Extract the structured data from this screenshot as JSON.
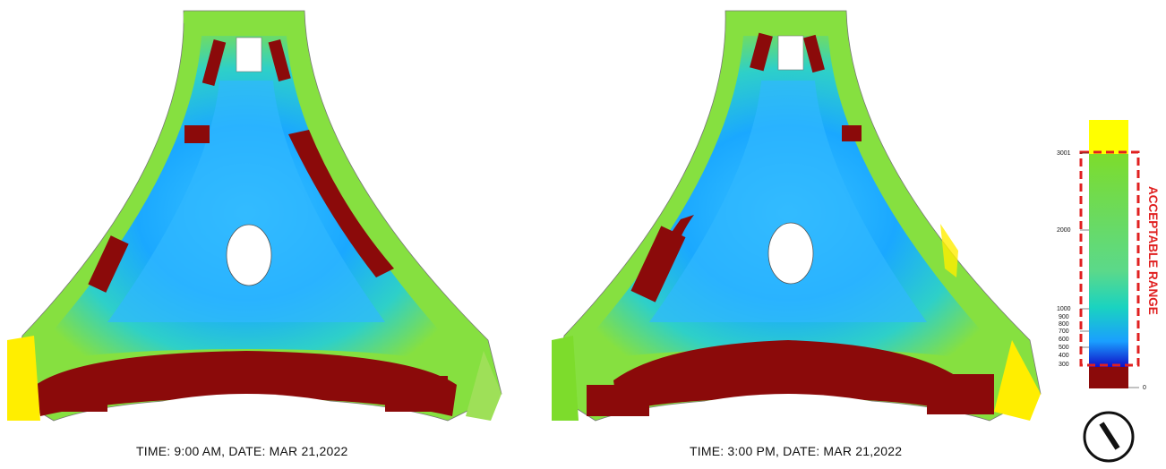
{
  "captions": {
    "left": "TIME: 9:00 AM, DATE: MAR 21,2022",
    "right": "TIME: 3:00 PM, DATE: MAR 21,2022"
  },
  "legend": {
    "range_label": "ACCEPTABLE RANGE",
    "ticks": [
      "3001",
      "2000",
      "1000",
      "900",
      "800",
      "700",
      "600",
      "500",
      "400",
      "300",
      "0"
    ],
    "colors": {
      "over": "#ffff00",
      "high": "#7ddc2c",
      "mid": "#1ad3c0",
      "low": "#1a9fff",
      "very_low": "#1010c8",
      "under": "#8b0a0a",
      "range_border": "#e02020"
    }
  },
  "compass": {
    "icon": "north-arrow-icon"
  }
}
